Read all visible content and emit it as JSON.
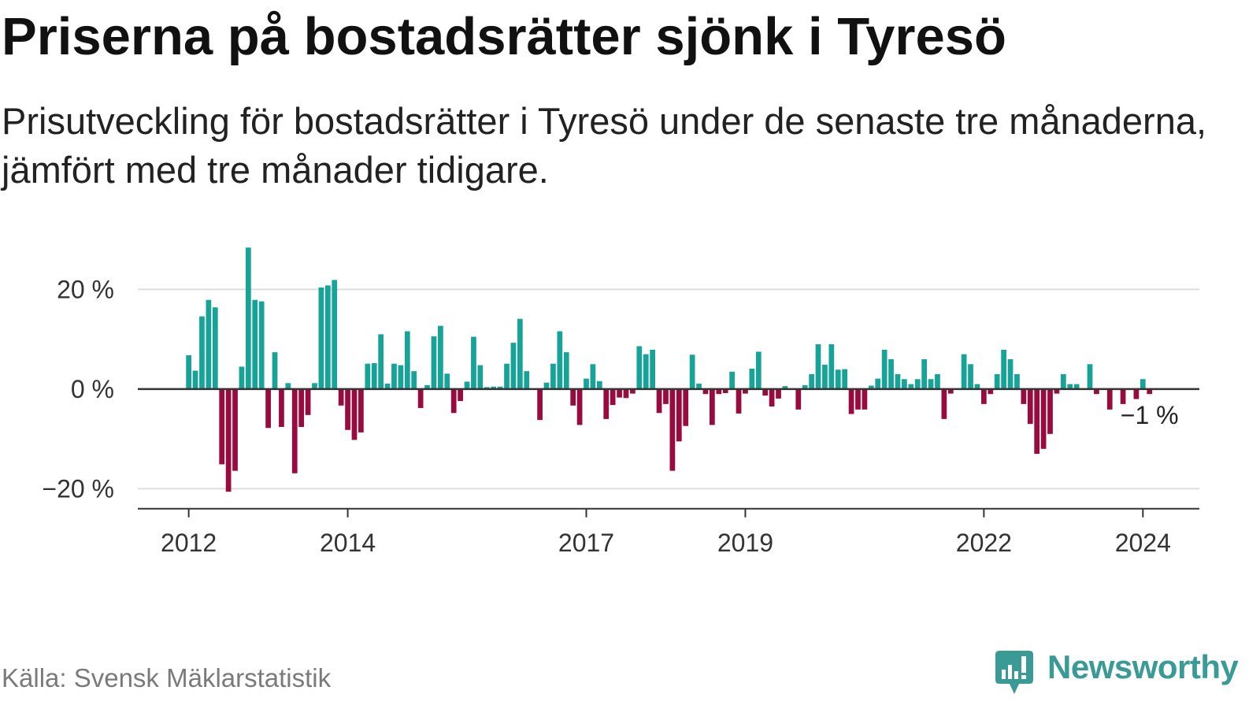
{
  "chart_data": {
    "type": "bar",
    "title": "Priserna på bostadsrätter sjönk i Tyresö",
    "subtitle": "Prisutveckling för bostadsrätter i Tyresö under de senaste tre månaderna, jämfört med tre månader tidigare.",
    "start_year": 2012,
    "start_month": 1,
    "values": [
      6.8,
      3.7,
      14.6,
      17.9,
      16.4,
      -15.1,
      -20.6,
      -16.4,
      4.5,
      28.4,
      17.9,
      17.6,
      -7.8,
      7.4,
      -7.6,
      1.2,
      -16.9,
      -7.6,
      -5.2,
      1.2,
      20.4,
      20.8,
      21.9,
      -3.3,
      -8.2,
      -10.2,
      -8.7,
      5.1,
      5.2,
      11.0,
      1.1,
      5.1,
      4.8,
      11.6,
      3.6,
      -3.8,
      0.8,
      10.6,
      12.7,
      3.1,
      -4.8,
      -2.4,
      1.5,
      10.5,
      4.8,
      0.4,
      0.5,
      0.5,
      5.1,
      9.3,
      14.1,
      3.6,
      0.0,
      -6.2,
      1.3,
      5.1,
      11.6,
      7.4,
      -3.3,
      -7.2,
      2.1,
      5.0,
      1.6,
      -6.0,
      -3.2,
      -1.7,
      -1.8,
      -0.9,
      8.6,
      7.0,
      7.9,
      -4.8,
      -3.0,
      -16.4,
      -10.5,
      -7.4,
      6.9,
      1.1,
      -1.0,
      -7.2,
      -1.0,
      -0.8,
      3.5,
      -4.9,
      -0.9,
      4.1,
      7.5,
      -1.3,
      -3.5,
      -1.9,
      0.6,
      0.0,
      -4.1,
      0.8,
      3.0,
      9.0,
      4.9,
      9.0,
      3.9,
      4.0,
      -5.0,
      -4.1,
      -4.1,
      0.7,
      2.1,
      7.9,
      6.0,
      3.0,
      2.0,
      1.0,
      2.0,
      6.0,
      2.0,
      3.0,
      -6.0,
      -0.9,
      0.0,
      7.0,
      5.0,
      1.0,
      -3.0,
      -1.0,
      3.0,
      7.9,
      6.0,
      3.0,
      -3.0,
      -7.0,
      -13.0,
      -12.0,
      -9.0,
      -0.9,
      3.0,
      1.0,
      1.0,
      0.0,
      5.0,
      -1.0,
      0.0,
      -4.1,
      0.0,
      -3.0,
      0.0,
      -2.0,
      2.0,
      -1.0
    ],
    "xticks": [
      "2012",
      "2014",
      "2017",
      "2019",
      "2022",
      "2024"
    ],
    "xlim": [
      2011.36,
      2024.71
    ],
    "yticks": [
      20,
      0,
      -20
    ],
    "ytick_labels": [
      "20 %",
      "0 %",
      "−20 %"
    ],
    "ylim": [
      -24,
      29
    ],
    "annotation": {
      "text": "−1 %",
      "value": -1
    },
    "colors": {
      "positive": "#17a398",
      "negative": "#990b3f",
      "zero_line": "#333333",
      "axis": "#333333",
      "grid": "#dddddd",
      "tick_text": "#333333",
      "annotation_text": "#222222"
    }
  },
  "footer": {
    "source": "Källa: Svensk Mäklarstatistik",
    "brand": "Newsworthy",
    "brand_color": "#3a9a95",
    "logo_icon": "bar-chart-bubble-icon"
  }
}
